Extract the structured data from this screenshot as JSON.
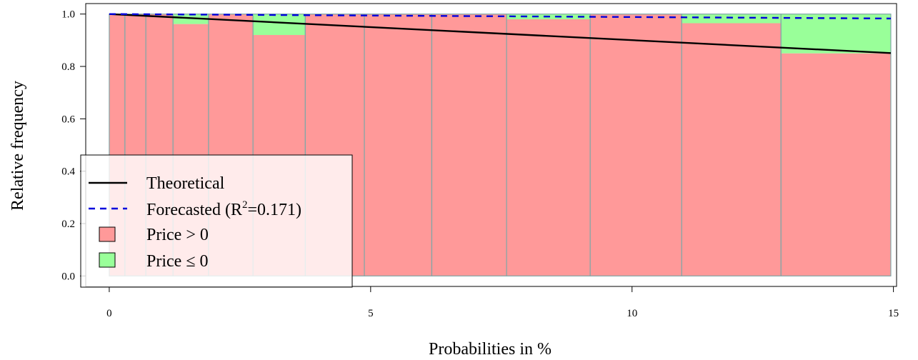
{
  "chart_data": {
    "type": "bar",
    "xlabel": "Probabilities in %",
    "ylabel": "Relative frequency",
    "xlim": [
      -0.45,
      15.06
    ],
    "ylim": [
      -0.04,
      1.04
    ],
    "x_ticks": [
      0,
      5,
      10,
      15
    ],
    "y_ticks": [
      0.0,
      0.2,
      0.4,
      0.6,
      0.8,
      1.0
    ],
    "y_tick_labels": [
      "0.0",
      "0.2",
      "0.4",
      "0.6",
      "0.8",
      "1.0"
    ],
    "grid": false,
    "legend_position": "bottom-left",
    "colors": {
      "price_gt_0": "#ff9999",
      "price_le_0": "#99ff99",
      "bar_border": "#7fa7a7",
      "theoretical": "#000000",
      "forecasted": "#0000dd"
    },
    "bins": [
      {
        "x0": 0.0,
        "x1": 0.3,
        "positive": 1.0
      },
      {
        "x0": 0.3,
        "x1": 0.7,
        "positive": 1.0
      },
      {
        "x0": 0.7,
        "x1": 1.22,
        "positive": 1.0
      },
      {
        "x0": 1.22,
        "x1": 1.9,
        "positive": 0.962
      },
      {
        "x0": 1.9,
        "x1": 2.75,
        "positive": 1.0
      },
      {
        "x0": 2.75,
        "x1": 3.75,
        "positive": 0.92
      },
      {
        "x0": 3.75,
        "x1": 4.88,
        "positive": 1.0
      },
      {
        "x0": 4.88,
        "x1": 6.17,
        "positive": 1.0
      },
      {
        "x0": 6.17,
        "x1": 7.6,
        "positive": 1.0
      },
      {
        "x0": 7.6,
        "x1": 9.2,
        "positive": 0.98
      },
      {
        "x0": 9.2,
        "x1": 10.95,
        "positive": 1.0
      },
      {
        "x0": 10.95,
        "x1": 12.85,
        "positive": 0.965
      },
      {
        "x0": 12.85,
        "x1": 14.95,
        "positive": 0.85
      }
    ],
    "theoretical_line": {
      "x": [
        0.0,
        14.95
      ],
      "y": [
        1.0,
        0.851
      ]
    },
    "forecasted_line": {
      "x": [
        0.0,
        14.95
      ],
      "y": [
        1.0,
        0.983
      ]
    },
    "legend": {
      "theoretical": "Theoretical",
      "forecasted_prefix": "Forecasted (R",
      "forecasted_sup": "2",
      "forecasted_suffix": "=0.171)",
      "price_pos": "Price > 0",
      "price_neg": "Price ≤ 0"
    }
  }
}
